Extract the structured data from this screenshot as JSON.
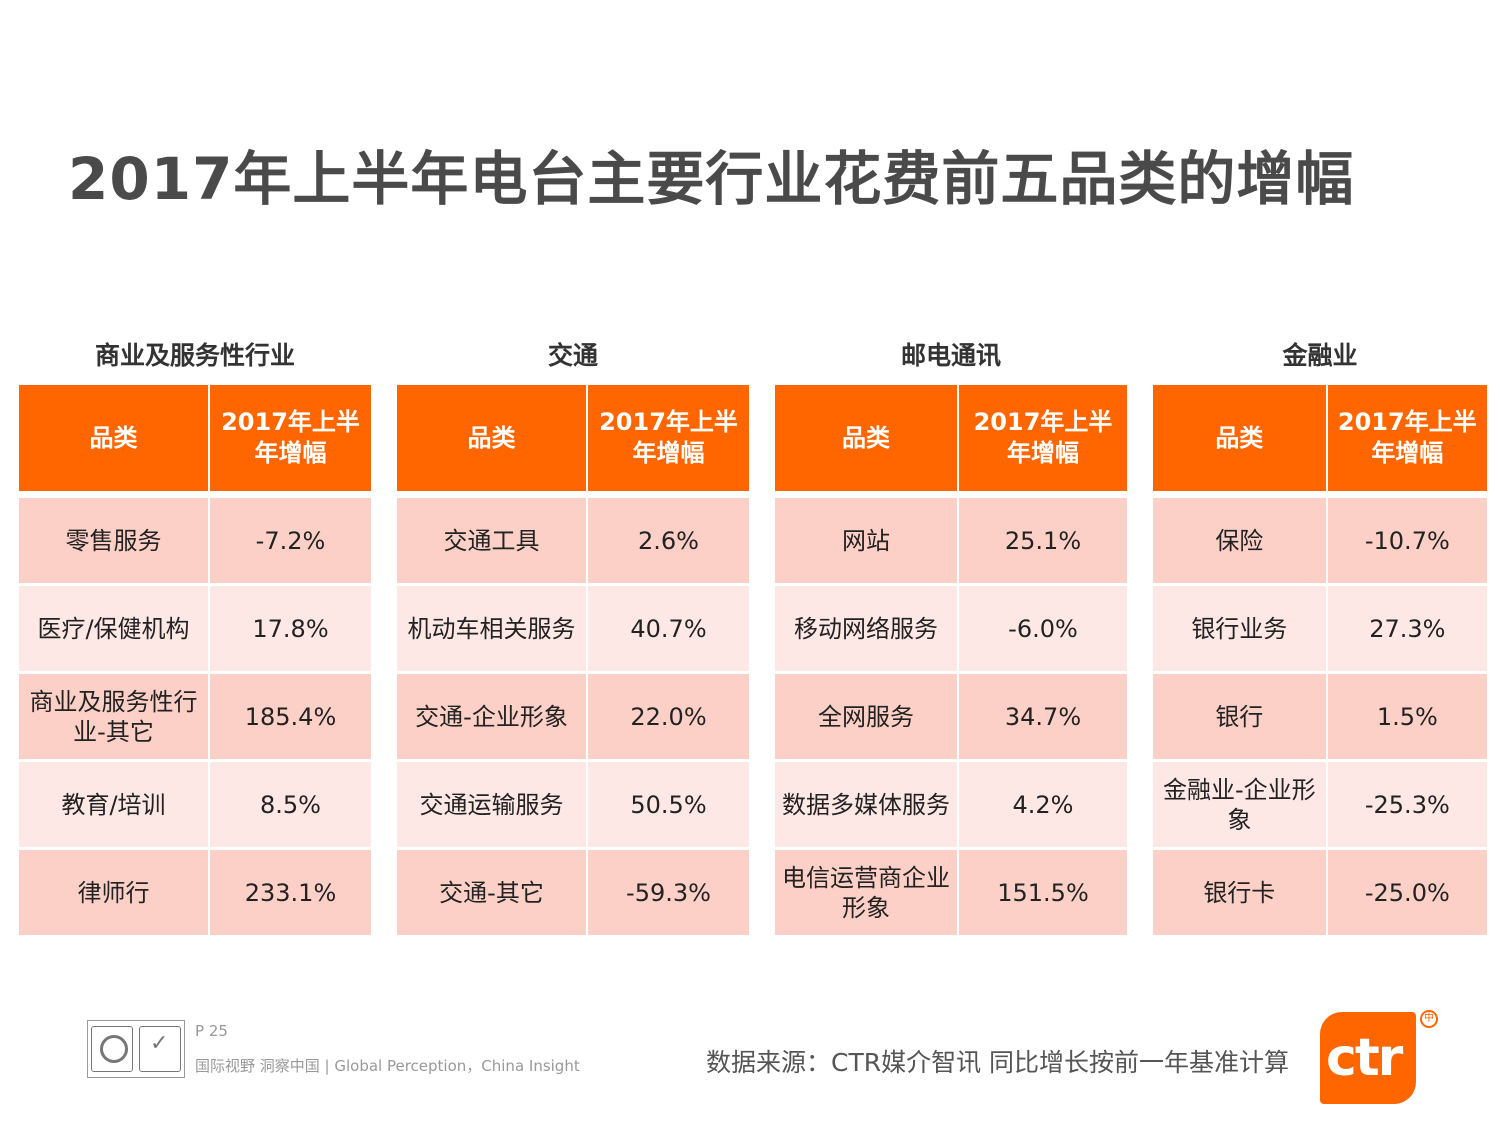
{
  "title": "2017年上半年电台主要行业花费前五品类的增幅",
  "colors": {
    "accent": "#ff6600",
    "row_dark": "#fdd0c7",
    "row_light": "#fee8e5"
  },
  "groups": [
    {
      "title": "商业及服务性行业",
      "header": [
        "品类",
        "2017年上半年增幅"
      ],
      "rows": [
        {
          "category": "零售服务",
          "growth": "-7.2%"
        },
        {
          "category": "医疗/保健机构",
          "growth": "17.8%"
        },
        {
          "category": "商业及服务性行业-其它",
          "growth": "185.4%"
        },
        {
          "category": "教育/培训",
          "growth": "8.5%"
        },
        {
          "category": "律师行",
          "growth": "233.1%"
        }
      ]
    },
    {
      "title": "交通",
      "header": [
        "品类",
        "2017年上半年增幅"
      ],
      "rows": [
        {
          "category": "交通工具",
          "growth": "2.6%"
        },
        {
          "category": "机动车相关服务",
          "growth": "40.7%"
        },
        {
          "category": "交通-企业形象",
          "growth": "22.0%"
        },
        {
          "category": "交通运输服务",
          "growth": "50.5%"
        },
        {
          "category": "交通-其它",
          "growth": "-59.3%"
        }
      ]
    },
    {
      "title": "邮电通讯",
      "header": [
        "品类",
        "2017年上半年增幅"
      ],
      "rows": [
        {
          "category": "网站",
          "growth": "25.1%"
        },
        {
          "category": "移动网络服务",
          "growth": "-6.0%"
        },
        {
          "category": "全网服务",
          "growth": "34.7%"
        },
        {
          "category": "数据多媒体服务",
          "growth": "4.2%"
        },
        {
          "category": "电信运营商企业形象",
          "growth": "151.5%"
        }
      ]
    },
    {
      "title": "金融业",
      "header": [
        "品类",
        "2017年上半年增幅"
      ],
      "rows": [
        {
          "category": "保险",
          "growth": "-10.7%"
        },
        {
          "category": "银行业务",
          "growth": "27.3%"
        },
        {
          "category": "银行",
          "growth": "1.5%"
        },
        {
          "category": "金融业-企业形象",
          "growth": "-25.3%"
        },
        {
          "category": "银行卡",
          "growth": "-25.0%"
        }
      ]
    }
  ],
  "footer": {
    "page": "P 25",
    "tagline": "国际视野  洞察中国 |  Global Perception，China Insight",
    "source": "数据来源：CTR媒介智讯    同比增长按前一年基准计算",
    "logo": "ctr",
    "logo_mark": "中"
  }
}
